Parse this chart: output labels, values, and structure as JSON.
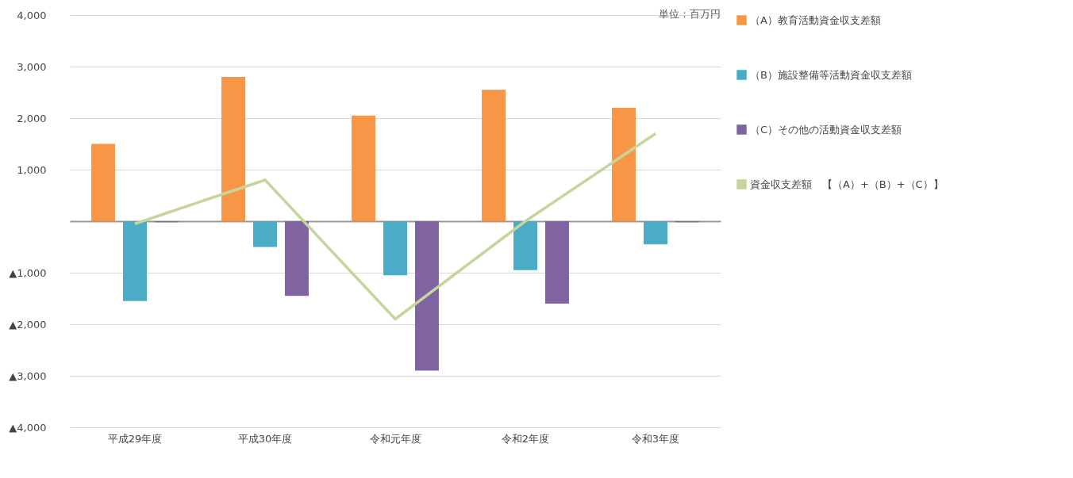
{
  "chart_data": {
    "type": "bar",
    "categories": [
      "平成29年度",
      "平成30年度",
      "令和元年度",
      "令和2年度",
      "令和3年度"
    ],
    "series": [
      {
        "name": "（A）教育活動資金収支差額",
        "color": "#f79646",
        "values": [
          1500,
          2800,
          2050,
          2550,
          2200
        ]
      },
      {
        "name": "（B）施設整備等活動資金収支差額",
        "color": "#4bacc6",
        "values": [
          -1550,
          -500,
          -1050,
          -950,
          -450
        ]
      },
      {
        "name": "（C）その他の活動資金収支差額",
        "color": "#8064a2",
        "values": [
          -20,
          -1450,
          -2900,
          -1600,
          -20
        ]
      },
      {
        "name": "資金収支差額　【（A）+（B）+（C）】",
        "type": "line",
        "color": "#c3d69b",
        "values": [
          -50,
          800,
          -1900,
          0,
          1700
        ]
      }
    ],
    "ylim": [
      -4000,
      4000
    ],
    "yticks": [
      {
        "value": -4000,
        "label": "▲4,000"
      },
      {
        "value": -3000,
        "label": "▲3,000"
      },
      {
        "value": -2000,
        "label": "▲2,000"
      },
      {
        "value": -1000,
        "label": "▲1,000"
      },
      {
        "value": 0,
        "label": null
      },
      {
        "value": 1000,
        "label": "1,000"
      },
      {
        "value": 2000,
        "label": "2,000"
      },
      {
        "value": 3000,
        "label": "3,000"
      },
      {
        "value": 4000,
        "label": "4,000"
      }
    ],
    "grid": "y",
    "legend": "right",
    "marker": "none",
    "line_style": "solid",
    "annotations": [
      "単位：百万円"
    ]
  }
}
